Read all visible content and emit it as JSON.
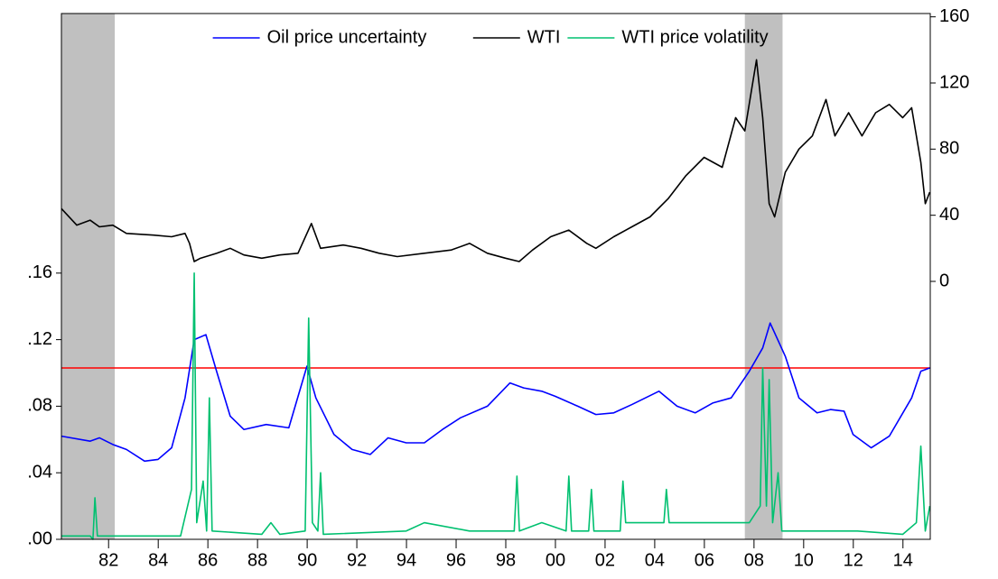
{
  "chart_data": {
    "type": "line",
    "xlim": [
      1980.1,
      2015.1
    ],
    "xticks": [
      {
        "value": 1982,
        "label": "82"
      },
      {
        "value": 1984,
        "label": "84"
      },
      {
        "value": 1986,
        "label": "86"
      },
      {
        "value": 1988,
        "label": "88"
      },
      {
        "value": 1990,
        "label": "90"
      },
      {
        "value": 1992,
        "label": "92"
      },
      {
        "value": 1994,
        "label": "94"
      },
      {
        "value": 1996,
        "label": "96"
      },
      {
        "value": 1998,
        "label": "98"
      },
      {
        "value": 2000,
        "label": "00"
      },
      {
        "value": 2002,
        "label": "02"
      },
      {
        "value": 2004,
        "label": "04"
      },
      {
        "value": 2006,
        "label": "06"
      },
      {
        "value": 2008,
        "label": "08"
      },
      {
        "value": 2010,
        "label": "10"
      },
      {
        "value": 2012,
        "label": "12"
      },
      {
        "value": 2014,
        "label": "14"
      }
    ],
    "ylim": [
      0,
      0.316
    ],
    "yticks": [
      {
        "value": 0,
        "label": ".00"
      },
      {
        "value": 0.04,
        "label": ".04"
      },
      {
        "value": 0.08,
        "label": ".08"
      },
      {
        "value": 0.12,
        "label": ".12"
      },
      {
        "value": 0.16,
        "label": ".16"
      }
    ],
    "y2lim": [
      -156,
      162
    ],
    "y2ticks": [
      0,
      40,
      80,
      120,
      160
    ],
    "recessions": [
      [
        1980.1,
        1982.25
      ],
      [
        2007.63,
        2009.15
      ]
    ],
    "recession_color": "#c0c0c0",
    "threshold": 0.103,
    "threshold_color": "#ff0000",
    "legend": "top",
    "series": [
      {
        "name": "Oil price uncertainty",
        "color": "#0000ff",
        "x": [
          1980.1,
          1981.26,
          1981.63,
          1982.17,
          1982.72,
          1983.45,
          1983.99,
          1984.54,
          1985.08,
          1985.45,
          1985.92,
          1986.35,
          1986.9,
          1987.45,
          1988.35,
          1989.26,
          1989.99,
          1990.35,
          1991.08,
          1991.81,
          1992.54,
          1993.26,
          1993.99,
          1994.72,
          1995.45,
          1996.17,
          1997.26,
          1998.17,
          1998.72,
          1999.45,
          1999.99,
          2000.9,
          2001.63,
          2002.35,
          2003.08,
          2004.17,
          2004.9,
          2005.63,
          2006.35,
          2007.08,
          2007.81,
          2008.35,
          2008.65,
          2009.26,
          2009.81,
          2010.54,
          2011.08,
          2011.63,
          2011.99,
          2012.72,
          2013.45,
          2014.35,
          2014.72,
          2015.08
        ],
        "values": [
          0.062,
          0.059,
          0.061,
          0.057,
          0.054,
          0.047,
          0.048,
          0.055,
          0.085,
          0.12,
          0.123,
          0.101,
          0.074,
          0.066,
          0.069,
          0.067,
          0.104,
          0.085,
          0.063,
          0.054,
          0.051,
          0.061,
          0.058,
          0.058,
          0.066,
          0.073,
          0.08,
          0.094,
          0.091,
          0.089,
          0.086,
          0.08,
          0.075,
          0.076,
          0.081,
          0.089,
          0.08,
          0.076,
          0.082,
          0.085,
          0.101,
          0.115,
          0.13,
          0.11,
          0.085,
          0.076,
          0.078,
          0.077,
          0.063,
          0.055,
          0.062,
          0.085,
          0.101,
          0.103
        ]
      },
      {
        "name": "WTI",
        "color": "#000000",
        "axis": "y2",
        "x": [
          1980.1,
          1980.72,
          1981.26,
          1981.63,
          1982.17,
          1982.72,
          1983.81,
          1984.54,
          1985.08,
          1985.26,
          1985.45,
          1985.7,
          1986.35,
          1986.9,
          1987.45,
          1988.17,
          1988.9,
          1989.63,
          1990.17,
          1990.54,
          1991.45,
          1992.17,
          1992.9,
          1993.63,
          1994.72,
          1995.81,
          1996.54,
          1997.26,
          1997.99,
          1998.54,
          1999.08,
          1999.81,
          2000.54,
          2001.26,
          2001.63,
          2002.35,
          2003.08,
          2003.81,
          2004.54,
          2005.26,
          2005.99,
          2006.72,
          2007.26,
          2007.63,
          2008.1,
          2008.35,
          2008.61,
          2008.83,
          2009.26,
          2009.81,
          2010.35,
          2010.9,
          2011.26,
          2011.81,
          2012.35,
          2012.9,
          2013.45,
          2013.99,
          2014.35,
          2014.72,
          2014.9,
          2015.08
        ],
        "values": [
          44,
          34,
          37,
          33,
          34,
          29,
          28,
          27,
          29,
          23,
          12,
          14,
          17,
          20,
          16,
          14,
          16,
          17,
          35,
          20,
          22,
          20,
          17,
          15,
          17,
          19,
          23,
          17,
          14,
          12,
          19,
          27,
          31,
          23,
          20,
          27,
          33,
          39,
          50,
          64,
          75,
          69,
          99,
          91,
          134,
          99,
          47,
          39,
          66,
          80,
          88,
          110,
          88,
          102,
          88,
          102,
          107,
          99,
          105,
          72,
          47,
          54
        ]
      },
      {
        "name": "WTI price volatility",
        "color": "#00c070",
        "x": [
          1980.1,
          1981.26,
          1981.37,
          1981.45,
          1981.55,
          1984.9,
          1985.34,
          1985.45,
          1985.55,
          1985.81,
          1985.95,
          1986.06,
          1986.17,
          1988.17,
          1988.54,
          1988.9,
          1989.92,
          1990.06,
          1990.21,
          1990.43,
          1990.54,
          1990.65,
          1993.99,
          1994.72,
          1996.54,
          1998.34,
          1998.45,
          1998.55,
          1999.45,
          2000.43,
          2000.54,
          2000.65,
          2001.34,
          2001.45,
          2001.55,
          2002.61,
          2002.72,
          2002.83,
          2004.37,
          2004.47,
          2004.58,
          2006.72,
          2007.81,
          2008.25,
          2008.35,
          2008.5,
          2008.61,
          2008.75,
          2008.97,
          2009.12,
          2012.17,
          2013.99,
          2014.54,
          2014.72,
          2014.9,
          2015.08
        ],
        "values": [
          0.002,
          0.002,
          0,
          0.025,
          0.002,
          0.002,
          0.03,
          0.16,
          0.01,
          0.035,
          0.005,
          0.085,
          0.005,
          0.003,
          0.01,
          0.003,
          0.005,
          0.133,
          0.01,
          0.005,
          0.04,
          0.003,
          0.005,
          0.01,
          0.005,
          0.005,
          0.038,
          0.005,
          0.01,
          0.005,
          0.038,
          0.005,
          0.005,
          0.03,
          0.005,
          0.005,
          0.035,
          0.01,
          0.01,
          0.03,
          0.01,
          0.01,
          0.01,
          0.02,
          0.103,
          0.02,
          0.096,
          0.01,
          0.04,
          0.005,
          0.005,
          0.003,
          0.01,
          0.056,
          0.005,
          0.02
        ]
      }
    ]
  }
}
